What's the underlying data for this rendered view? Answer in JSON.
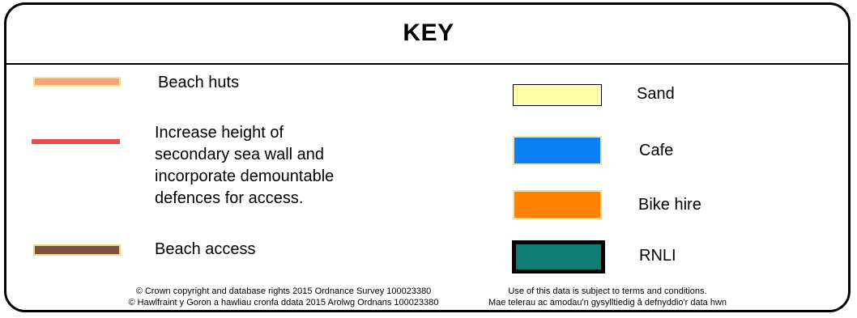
{
  "title": "KEY",
  "left_items": [
    {
      "label": "Beach huts",
      "color": "#f9a07e",
      "border": "#fbe58c"
    },
    {
      "label": "Increase height of\nsecondary sea wall and\nincorporate demountable\ndefences for access.",
      "color": "#ee4a4f"
    },
    {
      "label": "Beach access",
      "color": "#7b5440",
      "border": "#f3d78a"
    }
  ],
  "right_items": [
    {
      "label": "Sand",
      "color": "#ffffaa",
      "border": "#000000"
    },
    {
      "label": "Cafe",
      "color": "#0b7ff1",
      "border": "#f4e39a"
    },
    {
      "label": "Bike hire",
      "color": "#ff8200",
      "border": "#f4e39a"
    },
    {
      "label": "RNLI",
      "color": "#0e7c73",
      "border": "#000000"
    }
  ],
  "footer": {
    "left_line1": "© Crown copyright and database rights 2015 Ordnance Survey 100023380",
    "left_line2": "© Hawlfraint y Goron a hawliau cronfa ddata 2015 Arolwg Ordnans 100023380",
    "right_line1": "Use of this data is subject to terms and conditions.",
    "right_line2": "Mae telerau ac amodau'n gysylltiedig â defnyddio'r data hwn"
  }
}
